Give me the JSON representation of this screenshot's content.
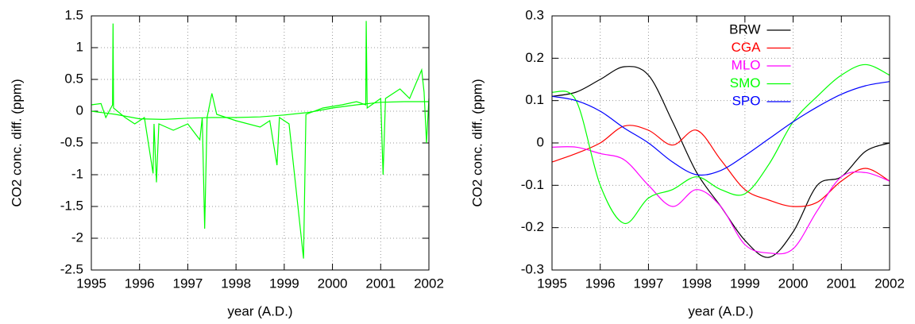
{
  "chart_data": [
    {
      "type": "line",
      "xlabel": "year (A.D.)",
      "ylabel": "CO2 conc. diff. (ppm)",
      "xlim": [
        1995,
        2002
      ],
      "xticks": [
        1995,
        1996,
        1997,
        1998,
        1999,
        2000,
        2001,
        2002
      ],
      "ylim": [
        -2.5,
        1.5
      ],
      "yticks": [
        -2.5,
        -2,
        -1.5,
        -1,
        -0.5,
        0,
        0.5,
        1,
        1.5
      ],
      "grid": true,
      "smooth": false,
      "series": [
        {
          "color": "#00ff00",
          "x": [
            1995.0,
            1995.2,
            1995.3,
            1995.44,
            1995.45,
            1995.46,
            1995.7,
            1995.9,
            1996.1,
            1996.28,
            1996.3,
            1996.35,
            1996.4,
            1996.7,
            1997.0,
            1997.25,
            1997.3,
            1997.35,
            1997.4,
            1997.5,
            1997.6,
            1998.0,
            1998.5,
            1998.7,
            1998.85,
            1998.9,
            1999.1,
            1999.4,
            1999.45,
            1999.8,
            2000.2,
            2000.5,
            2000.69,
            2000.7,
            2000.72,
            2001.0,
            2001.05,
            2001.1,
            2001.4,
            2001.6,
            2001.85,
            2001.9,
            2001.95,
            2002.0
          ],
          "values": [
            0.1,
            0.12,
            -0.1,
            0.1,
            1.38,
            0.05,
            -0.1,
            -0.2,
            -0.1,
            -0.98,
            -0.2,
            -1.12,
            -0.2,
            -0.3,
            -0.2,
            -0.45,
            -0.1,
            -1.85,
            -0.1,
            0.28,
            -0.05,
            -0.15,
            -0.25,
            -0.15,
            -0.85,
            -0.1,
            -0.2,
            -2.32,
            -0.05,
            0.05,
            0.1,
            0.15,
            0.1,
            1.42,
            0.05,
            0.2,
            -1.0,
            0.2,
            0.35,
            0.2,
            0.65,
            0.3,
            -0.5,
            0.2
          ]
        },
        {
          "color": "#00ff00",
          "x": [
            1995,
            1995.5,
            1996,
            1996.5,
            1997,
            1997.5,
            1998,
            1998.5,
            1999,
            1999.5,
            2000,
            2000.5,
            2001,
            2001.5,
            2002
          ],
          "values": [
            0,
            -0.05,
            -0.12,
            -0.13,
            -0.11,
            -0.1,
            -0.1,
            -0.09,
            -0.06,
            -0.02,
            0.05,
            0.1,
            0.14,
            0.15,
            0.15
          ]
        }
      ]
    },
    {
      "type": "line",
      "xlabel": "year (A.D.)",
      "ylabel": "CO2 conc. diff. (ppm)",
      "xlim": [
        1995,
        2002
      ],
      "xticks": [
        1995,
        1996,
        1997,
        1998,
        1999,
        2000,
        2001,
        2002
      ],
      "ylim": [
        -0.3,
        0.3
      ],
      "yticks": [
        -0.3,
        -0.2,
        -0.1,
        0,
        0.1,
        0.2,
        0.3
      ],
      "grid": true,
      "smooth": true,
      "legend": "top",
      "x": [
        1995,
        1995.5,
        1996,
        1996.5,
        1997,
        1997.5,
        1998,
        1998.5,
        1999,
        1999.5,
        2000,
        2000.5,
        2001,
        2001.5,
        2002
      ],
      "series": [
        {
          "name": "BRW",
          "color": "#000000",
          "values": [
            0.11,
            0.12,
            0.15,
            0.18,
            0.16,
            0.05,
            -0.07,
            -0.15,
            -0.23,
            -0.27,
            -0.21,
            -0.1,
            -0.08,
            -0.02,
            0.0
          ]
        },
        {
          "name": "CGA",
          "color": "#ff0000",
          "values": [
            -0.045,
            -0.025,
            0.0,
            0.04,
            0.03,
            -0.005,
            0.03,
            -0.04,
            -0.11,
            -0.135,
            -0.15,
            -0.14,
            -0.09,
            -0.06,
            -0.09
          ]
        },
        {
          "name": "MLO",
          "color": "#ff00ff",
          "values": [
            -0.01,
            -0.01,
            -0.025,
            -0.04,
            -0.1,
            -0.15,
            -0.11,
            -0.15,
            -0.24,
            -0.26,
            -0.25,
            -0.16,
            -0.08,
            -0.07,
            -0.09
          ]
        },
        {
          "name": "SMO",
          "color": "#00ff00",
          "values": [
            0.12,
            0.1,
            -0.1,
            -0.19,
            -0.13,
            -0.11,
            -0.08,
            -0.11,
            -0.12,
            -0.05,
            0.05,
            0.11,
            0.16,
            0.185,
            0.16
          ]
        },
        {
          "name": "SPO",
          "color": "#0000ff",
          "values": [
            0.11,
            0.1,
            0.075,
            0.035,
            0.0,
            -0.045,
            -0.075,
            -0.065,
            -0.03,
            0.01,
            0.05,
            0.085,
            0.115,
            0.135,
            0.145
          ]
        }
      ]
    }
  ]
}
